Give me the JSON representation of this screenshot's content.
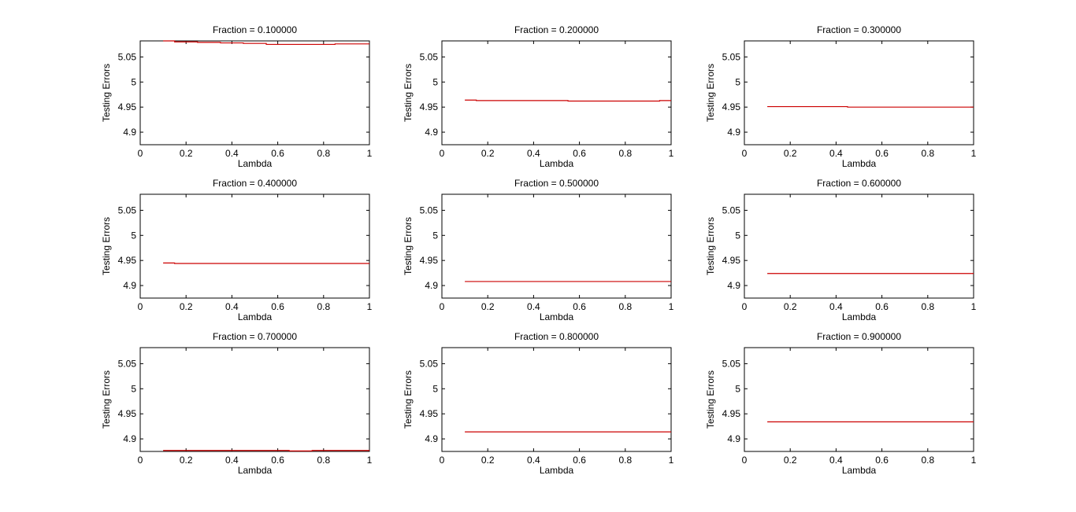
{
  "figure": {
    "background": "#ffffff",
    "axis_color": "#000000",
    "line_color": "#cc0000"
  },
  "chart_data": [
    {
      "type": "line",
      "title": "Fraction = 0.100000",
      "xlabel": "Lambda",
      "ylabel": "Testing Errors",
      "xlim": [
        0,
        1
      ],
      "ylim": [
        4.875,
        5.082
      ],
      "xticks": [
        "0",
        "0.2",
        "0.4",
        "0.6",
        "0.8",
        "1"
      ],
      "yticks": [
        "4.9",
        "4.95",
        "5",
        "5.05"
      ],
      "grid": false,
      "series": [
        {
          "x": [
            0.1,
            0.15,
            0.15,
            0.25,
            0.25,
            0.35,
            0.35,
            0.45,
            0.45,
            0.55,
            0.55,
            0.85,
            0.85,
            1.0
          ],
          "y": [
            5.082,
            5.082,
            5.08,
            5.08,
            5.079,
            5.079,
            5.078,
            5.078,
            5.077,
            5.077,
            5.075,
            5.075,
            5.076,
            5.076
          ],
          "color": "#cc0000"
        }
      ]
    },
    {
      "type": "line",
      "title": "Fraction = 0.200000",
      "xlabel": "Lambda",
      "ylabel": "Testing Errors",
      "xlim": [
        0,
        1
      ],
      "ylim": [
        4.875,
        5.082
      ],
      "xticks": [
        "0",
        "0.2",
        "0.4",
        "0.6",
        "0.8",
        "1"
      ],
      "yticks": [
        "4.9",
        "4.95",
        "5",
        "5.05"
      ],
      "grid": false,
      "series": [
        {
          "x": [
            0.1,
            0.15,
            0.15,
            0.55,
            0.55,
            0.95,
            0.95,
            1.0
          ],
          "y": [
            4.964,
            4.964,
            4.963,
            4.963,
            4.962,
            4.962,
            4.963,
            4.963
          ],
          "color": "#cc0000"
        }
      ]
    },
    {
      "type": "line",
      "title": "Fraction = 0.300000",
      "xlabel": "Lambda",
      "ylabel": "Testing Errors",
      "xlim": [
        0,
        1
      ],
      "ylim": [
        4.875,
        5.082
      ],
      "xticks": [
        "0",
        "0.2",
        "0.4",
        "0.6",
        "0.8",
        "1"
      ],
      "yticks": [
        "4.9",
        "4.95",
        "5",
        "5.05"
      ],
      "grid": false,
      "series": [
        {
          "x": [
            0.1,
            0.45,
            0.45,
            1.0
          ],
          "y": [
            4.951,
            4.951,
            4.95,
            4.95
          ],
          "color": "#cc0000"
        }
      ]
    },
    {
      "type": "line",
      "title": "Fraction = 0.400000",
      "xlabel": "Lambda",
      "ylabel": "Testing Errors",
      "xlim": [
        0,
        1
      ],
      "ylim": [
        4.875,
        5.082
      ],
      "xticks": [
        "0",
        "0.2",
        "0.4",
        "0.6",
        "0.8",
        "1"
      ],
      "yticks": [
        "4.9",
        "4.95",
        "5",
        "5.05"
      ],
      "grid": false,
      "series": [
        {
          "x": [
            0.1,
            0.15,
            0.15,
            1.0
          ],
          "y": [
            4.945,
            4.945,
            4.944,
            4.944
          ],
          "color": "#cc0000"
        }
      ]
    },
    {
      "type": "line",
      "title": "Fraction = 0.500000",
      "xlabel": "Lambda",
      "ylabel": "Testing Errors",
      "xlim": [
        0,
        1
      ],
      "ylim": [
        4.875,
        5.082
      ],
      "xticks": [
        "0",
        "0.2",
        "0.4",
        "0.6",
        "0.8",
        "1"
      ],
      "yticks": [
        "4.9",
        "4.95",
        "5",
        "5.05"
      ],
      "grid": false,
      "series": [
        {
          "x": [
            0.1,
            1.0
          ],
          "y": [
            4.908,
            4.908
          ],
          "color": "#cc0000"
        }
      ]
    },
    {
      "type": "line",
      "title": "Fraction = 0.600000",
      "xlabel": "Lambda",
      "ylabel": "Testing Errors",
      "xlim": [
        0,
        1
      ],
      "ylim": [
        4.875,
        5.082
      ],
      "xticks": [
        "0",
        "0.2",
        "0.4",
        "0.6",
        "0.8",
        "1"
      ],
      "yticks": [
        "4.9",
        "4.95",
        "5",
        "5.05"
      ],
      "grid": false,
      "series": [
        {
          "x": [
            0.1,
            1.0
          ],
          "y": [
            4.924,
            4.924
          ],
          "color": "#cc0000"
        }
      ]
    },
    {
      "type": "line",
      "title": "Fraction = 0.700000",
      "xlabel": "Lambda",
      "ylabel": "Testing Errors",
      "xlim": [
        0,
        1
      ],
      "ylim": [
        4.875,
        5.082
      ],
      "xticks": [
        "0",
        "0.2",
        "0.4",
        "0.6",
        "0.8",
        "1"
      ],
      "yticks": [
        "4.9",
        "4.95",
        "5",
        "5.05"
      ],
      "grid": false,
      "series": [
        {
          "x": [
            0.1,
            0.65,
            0.65,
            0.75,
            0.75,
            1.0
          ],
          "y": [
            4.877,
            4.877,
            4.876,
            4.876,
            4.877,
            4.877
          ],
          "color": "#cc0000"
        }
      ]
    },
    {
      "type": "line",
      "title": "Fraction = 0.800000",
      "xlabel": "Lambda",
      "ylabel": "Testing Errors",
      "xlim": [
        0,
        1
      ],
      "ylim": [
        4.875,
        5.082
      ],
      "xticks": [
        "0",
        "0.2",
        "0.4",
        "0.6",
        "0.8",
        "1"
      ],
      "yticks": [
        "4.9",
        "4.95",
        "5",
        "5.05"
      ],
      "grid": false,
      "series": [
        {
          "x": [
            0.1,
            1.0
          ],
          "y": [
            4.914,
            4.914
          ],
          "color": "#cc0000"
        }
      ]
    },
    {
      "type": "line",
      "title": "Fraction = 0.900000",
      "xlabel": "Lambda",
      "ylabel": "Testing Errors",
      "xlim": [
        0,
        1
      ],
      "ylim": [
        4.875,
        5.082
      ],
      "xticks": [
        "0",
        "0.2",
        "0.4",
        "0.6",
        "0.8",
        "1"
      ],
      "yticks": [
        "4.9",
        "4.95",
        "5",
        "5.05"
      ],
      "grid": false,
      "series": [
        {
          "x": [
            0.1,
            1.0
          ],
          "y": [
            4.934,
            4.934
          ],
          "color": "#cc0000"
        }
      ]
    }
  ]
}
